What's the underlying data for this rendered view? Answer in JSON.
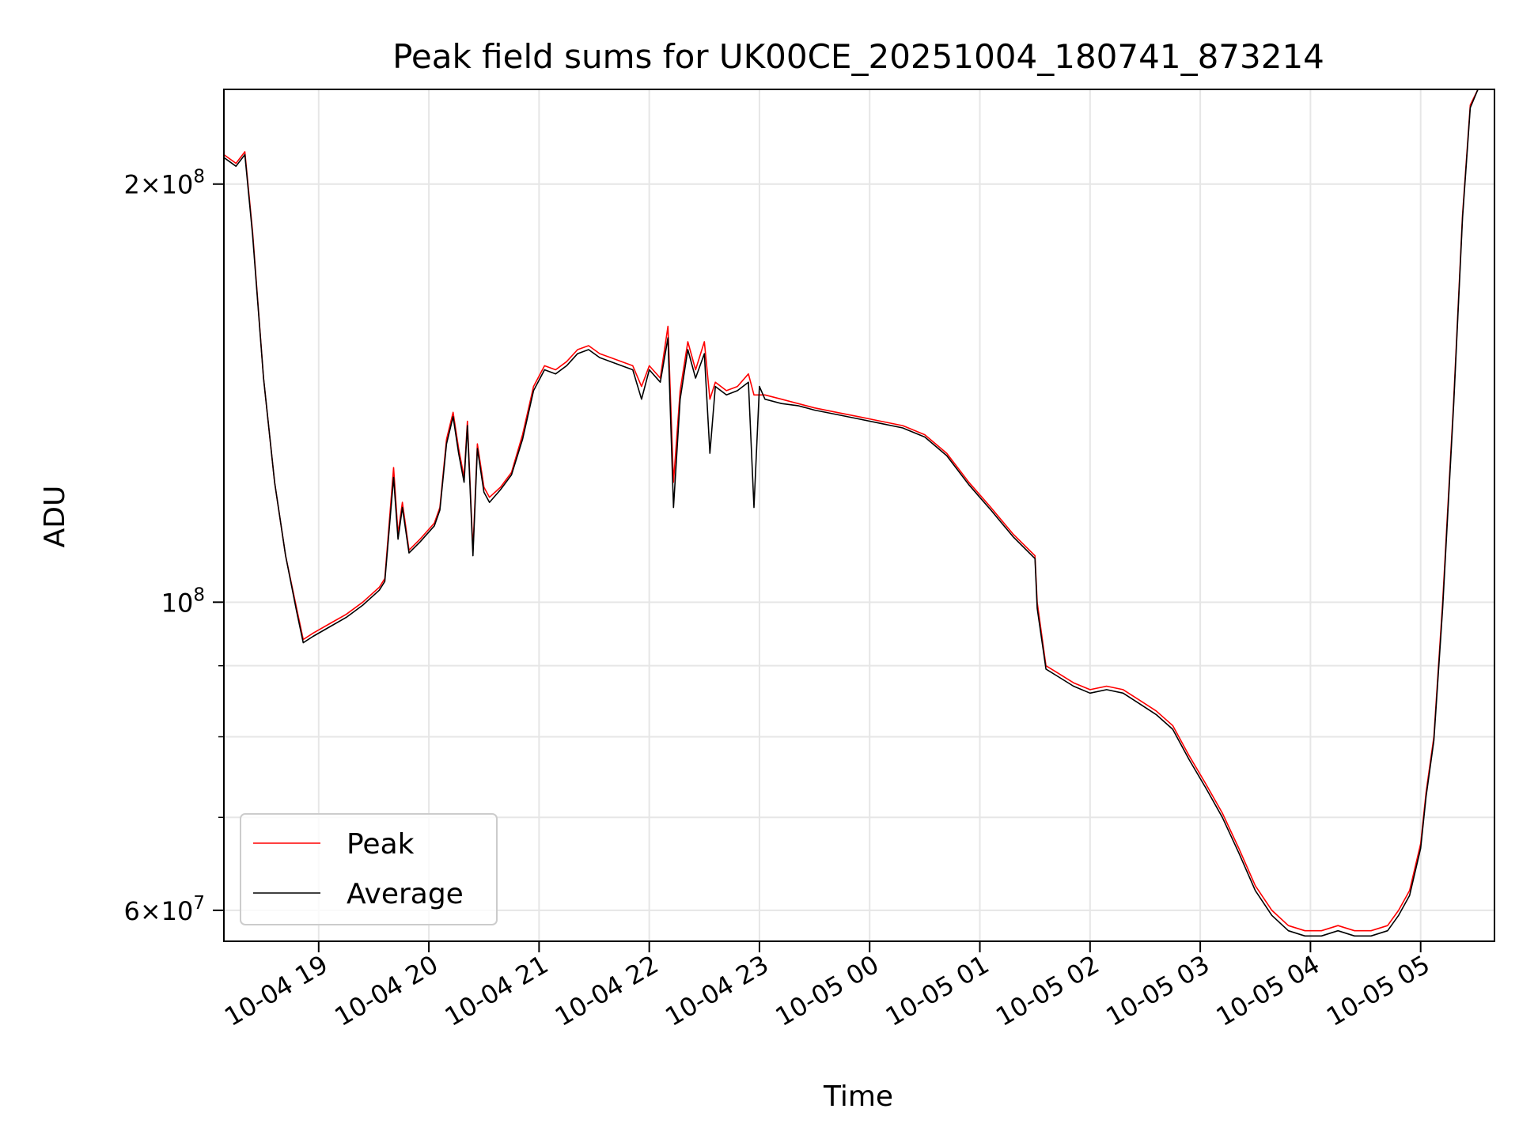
{
  "chart_data": {
    "type": "line",
    "title": "Peak field sums for UK00CE_20251004_180741_873214",
    "xlabel": "Time",
    "ylabel": "ADU",
    "yscale": "log",
    "ylim": [
      57000000,
      234000000
    ],
    "xlim_hours": [
      18.14,
      29.67
    ],
    "grid": true,
    "legend_position": "lower-left",
    "xticks": [
      {
        "label": "10-04 19",
        "hour": 19
      },
      {
        "label": "10-04 20",
        "hour": 20
      },
      {
        "label": "10-04 21",
        "hour": 21
      },
      {
        "label": "10-04 22",
        "hour": 22
      },
      {
        "label": "10-04 23",
        "hour": 23
      },
      {
        "label": "10-05 00",
        "hour": 24
      },
      {
        "label": "10-05 01",
        "hour": 25
      },
      {
        "label": "10-05 02",
        "hour": 26
      },
      {
        "label": "10-05 03",
        "hour": 27
      },
      {
        "label": "10-05 04",
        "hour": 28
      },
      {
        "label": "10-05 05",
        "hour": 29
      }
    ],
    "yticks": [
      {
        "value": 60000000,
        "base": "6×10",
        "exp": "7"
      },
      {
        "value": 100000000,
        "base": "10",
        "exp": "8"
      },
      {
        "value": 200000000,
        "base": "2×10",
        "exp": "8"
      }
    ],
    "minor_yticks": [
      70000000,
      80000000,
      90000000
    ],
    "series": [
      {
        "name": "Peak",
        "color": "#ff0000",
        "points": [
          [
            18.14,
            210000000
          ],
          [
            18.25,
            207000000
          ],
          [
            18.33,
            211000000
          ],
          [
            18.4,
            185000000
          ],
          [
            18.5,
            145000000
          ],
          [
            18.6,
            122000000
          ],
          [
            18.7,
            108000000
          ],
          [
            18.8,
            99000000
          ],
          [
            18.86,
            94000000
          ],
          [
            18.95,
            95000000
          ],
          [
            19.1,
            96500000
          ],
          [
            19.25,
            98000000
          ],
          [
            19.4,
            100000000
          ],
          [
            19.55,
            102500000
          ],
          [
            19.6,
            104000000
          ],
          [
            19.68,
            125000000
          ],
          [
            19.72,
            112000000
          ],
          [
            19.76,
            118000000
          ],
          [
            19.82,
            109000000
          ],
          [
            19.92,
            111000000
          ],
          [
            20.05,
            114000000
          ],
          [
            20.1,
            117000000
          ],
          [
            20.16,
            131000000
          ],
          [
            20.22,
            137000000
          ],
          [
            20.27,
            129000000
          ],
          [
            20.32,
            123000000
          ],
          [
            20.35,
            135000000
          ],
          [
            20.4,
            109000000
          ],
          [
            20.44,
            130000000
          ],
          [
            20.5,
            121000000
          ],
          [
            20.55,
            119000000
          ],
          [
            20.65,
            121000000
          ],
          [
            20.75,
            124000000
          ],
          [
            20.85,
            132000000
          ],
          [
            20.95,
            143000000
          ],
          [
            21.05,
            148000000
          ],
          [
            21.15,
            147000000
          ],
          [
            21.25,
            149000000
          ],
          [
            21.35,
            152000000
          ],
          [
            21.45,
            153000000
          ],
          [
            21.55,
            151000000
          ],
          [
            21.65,
            150000000
          ],
          [
            21.75,
            149000000
          ],
          [
            21.85,
            148000000
          ],
          [
            21.93,
            143000000
          ],
          [
            22.0,
            148000000
          ],
          [
            22.1,
            145000000
          ],
          [
            22.17,
            158000000
          ],
          [
            22.22,
            122000000
          ],
          [
            22.28,
            142000000
          ],
          [
            22.35,
            154000000
          ],
          [
            22.42,
            147000000
          ],
          [
            22.5,
            154000000
          ],
          [
            22.55,
            140000000
          ],
          [
            22.6,
            144000000
          ],
          [
            22.7,
            142000000
          ],
          [
            22.8,
            143000000
          ],
          [
            22.9,
            146000000
          ],
          [
            22.95,
            141000000
          ],
          [
            23.05,
            141000000
          ],
          [
            23.2,
            140000000
          ],
          [
            23.35,
            139000000
          ],
          [
            23.5,
            138000000
          ],
          [
            23.7,
            137000000
          ],
          [
            23.9,
            136000000
          ],
          [
            24.1,
            135000000
          ],
          [
            24.3,
            134000000
          ],
          [
            24.5,
            132000000
          ],
          [
            24.7,
            128000000
          ],
          [
            24.9,
            122000000
          ],
          [
            25.1,
            117000000
          ],
          [
            25.3,
            112000000
          ],
          [
            25.5,
            108000000
          ],
          [
            25.52,
            100000000
          ],
          [
            25.6,
            90000000
          ],
          [
            25.7,
            89000000
          ],
          [
            25.85,
            87500000
          ],
          [
            26.0,
            86500000
          ],
          [
            26.15,
            87000000
          ],
          [
            26.3,
            86500000
          ],
          [
            26.45,
            85000000
          ],
          [
            26.6,
            83500000
          ],
          [
            26.75,
            81500000
          ],
          [
            26.9,
            77500000
          ],
          [
            27.05,
            74000000
          ],
          [
            27.2,
            70500000
          ],
          [
            27.35,
            66500000
          ],
          [
            27.5,
            62500000
          ],
          [
            27.65,
            60000000
          ],
          [
            27.8,
            58500000
          ],
          [
            27.95,
            58000000
          ],
          [
            28.1,
            58000000
          ],
          [
            28.25,
            58500000
          ],
          [
            28.4,
            58000000
          ],
          [
            28.55,
            58000000
          ],
          [
            28.7,
            58500000
          ],
          [
            28.8,
            60000000
          ],
          [
            28.9,
            62000000
          ],
          [
            29.0,
            67000000
          ],
          [
            29.05,
            73000000
          ],
          [
            29.12,
            80000000
          ],
          [
            29.2,
            100000000
          ],
          [
            29.3,
            140000000
          ],
          [
            29.38,
            190000000
          ],
          [
            29.45,
            228000000
          ],
          [
            29.52,
            234000000
          ],
          [
            29.67,
            234000000
          ]
        ]
      },
      {
        "name": "Average",
        "color": "#000000",
        "points": [
          [
            18.14,
            209000000
          ],
          [
            18.25,
            206000000
          ],
          [
            18.33,
            210000000
          ],
          [
            18.4,
            184000000
          ],
          [
            18.5,
            145000000
          ],
          [
            18.6,
            122000000
          ],
          [
            18.7,
            108000000
          ],
          [
            18.8,
            98500000
          ],
          [
            18.86,
            93500000
          ],
          [
            18.95,
            94500000
          ],
          [
            19.1,
            96000000
          ],
          [
            19.25,
            97500000
          ],
          [
            19.4,
            99500000
          ],
          [
            19.55,
            102000000
          ],
          [
            19.6,
            103500000
          ],
          [
            19.68,
            123000000
          ],
          [
            19.72,
            111000000
          ],
          [
            19.76,
            117000000
          ],
          [
            19.82,
            108500000
          ],
          [
            19.92,
            110500000
          ],
          [
            20.05,
            113500000
          ],
          [
            20.1,
            116500000
          ],
          [
            20.16,
            130000000
          ],
          [
            20.22,
            136000000
          ],
          [
            20.27,
            128000000
          ],
          [
            20.32,
            122000000
          ],
          [
            20.35,
            134000000
          ],
          [
            20.4,
            108000000
          ],
          [
            20.44,
            129000000
          ],
          [
            20.5,
            120000000
          ],
          [
            20.55,
            118000000
          ],
          [
            20.65,
            120500000
          ],
          [
            20.75,
            123500000
          ],
          [
            20.85,
            131000000
          ],
          [
            20.95,
            142000000
          ],
          [
            21.05,
            147000000
          ],
          [
            21.15,
            146000000
          ],
          [
            21.25,
            148000000
          ],
          [
            21.35,
            151000000
          ],
          [
            21.45,
            152000000
          ],
          [
            21.55,
            150000000
          ],
          [
            21.65,
            149000000
          ],
          [
            21.75,
            148000000
          ],
          [
            21.85,
            147000000
          ],
          [
            21.93,
            140000000
          ],
          [
            22.0,
            147000000
          ],
          [
            22.1,
            144000000
          ],
          [
            22.17,
            155000000
          ],
          [
            22.22,
            117000000
          ],
          [
            22.28,
            140000000
          ],
          [
            22.35,
            152000000
          ],
          [
            22.42,
            145000000
          ],
          [
            22.5,
            151000000
          ],
          [
            22.55,
            128000000
          ],
          [
            22.6,
            143000000
          ],
          [
            22.7,
            141000000
          ],
          [
            22.8,
            142000000
          ],
          [
            22.9,
            144000000
          ],
          [
            22.95,
            117000000
          ],
          [
            23.0,
            143000000
          ],
          [
            23.05,
            140000000
          ],
          [
            23.2,
            139000000
          ],
          [
            23.35,
            138500000
          ],
          [
            23.5,
            137500000
          ],
          [
            23.7,
            136500000
          ],
          [
            23.9,
            135500000
          ],
          [
            24.1,
            134500000
          ],
          [
            24.3,
            133500000
          ],
          [
            24.5,
            131500000
          ],
          [
            24.7,
            127500000
          ],
          [
            24.9,
            121500000
          ],
          [
            25.1,
            116500000
          ],
          [
            25.3,
            111500000
          ],
          [
            25.5,
            107500000
          ],
          [
            25.52,
            99000000
          ],
          [
            25.6,
            89500000
          ],
          [
            25.7,
            88500000
          ],
          [
            25.85,
            87000000
          ],
          [
            26.0,
            86000000
          ],
          [
            26.15,
            86500000
          ],
          [
            26.3,
            86000000
          ],
          [
            26.45,
            84500000
          ],
          [
            26.6,
            83000000
          ],
          [
            26.75,
            81000000
          ],
          [
            26.9,
            77000000
          ],
          [
            27.05,
            73500000
          ],
          [
            27.2,
            70000000
          ],
          [
            27.35,
            66000000
          ],
          [
            27.5,
            62000000
          ],
          [
            27.65,
            59500000
          ],
          [
            27.8,
            58000000
          ],
          [
            27.95,
            57500000
          ],
          [
            28.1,
            57500000
          ],
          [
            28.25,
            58000000
          ],
          [
            28.4,
            57500000
          ],
          [
            28.55,
            57500000
          ],
          [
            28.7,
            58000000
          ],
          [
            28.8,
            59500000
          ],
          [
            28.9,
            61500000
          ],
          [
            29.0,
            66500000
          ],
          [
            29.05,
            72500000
          ],
          [
            29.12,
            79500000
          ],
          [
            29.2,
            99000000
          ],
          [
            29.3,
            139000000
          ],
          [
            29.38,
            189000000
          ],
          [
            29.45,
            227000000
          ],
          [
            29.52,
            234000000
          ],
          [
            29.67,
            234000000
          ]
        ]
      }
    ]
  }
}
